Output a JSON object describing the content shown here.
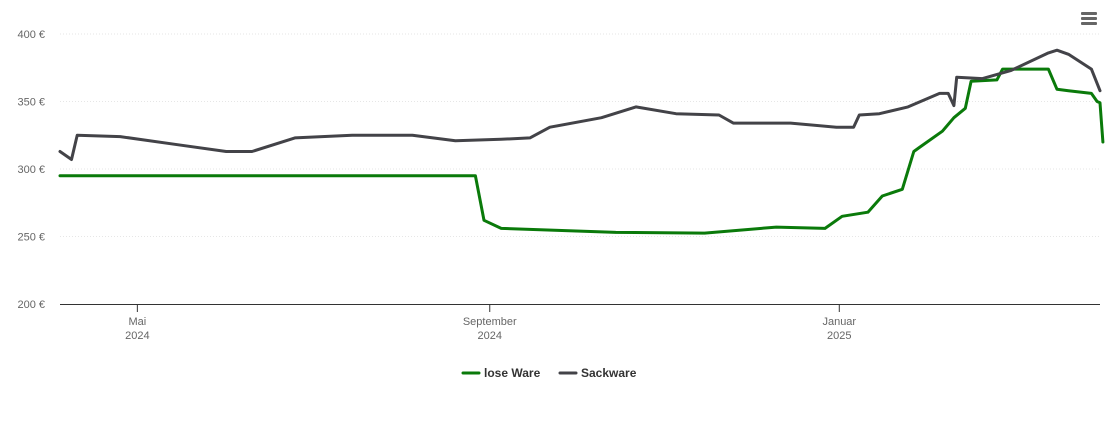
{
  "chart_data": {
    "type": "line",
    "ylim": [
      200,
      400
    ],
    "yticks": [
      200,
      250,
      300,
      350,
      400
    ],
    "ytick_labels": [
      "200 €",
      "250 €",
      "300 €",
      "350 €",
      "400 €"
    ],
    "xlim": [
      "2024-04-04",
      "2025-04-02"
    ],
    "xticks": [
      {
        "date": "2024-05-01",
        "label_line1": "Mai",
        "label_line2": "2024"
      },
      {
        "date": "2024-09-01",
        "label_line1": "September",
        "label_line2": "2024"
      },
      {
        "date": "2025-01-01",
        "label_line1": "Januar",
        "label_line2": "2025"
      }
    ],
    "legend_position": "bottom-center",
    "series": [
      {
        "name": "lose Ware",
        "color": "#0a7a0a",
        "points": [
          [
            "2024-04-04",
            295
          ],
          [
            "2024-08-27",
            295
          ],
          [
            "2024-08-30",
            262
          ],
          [
            "2024-09-05",
            256
          ],
          [
            "2024-10-15",
            253
          ],
          [
            "2024-11-15",
            252.5
          ],
          [
            "2024-12-10",
            257
          ],
          [
            "2024-12-27",
            256
          ],
          [
            "2025-01-02",
            265
          ],
          [
            "2025-01-11",
            268
          ],
          [
            "2025-01-16",
            280
          ],
          [
            "2025-01-23",
            285
          ],
          [
            "2025-01-27",
            313
          ],
          [
            "2025-01-29",
            316
          ],
          [
            "2025-02-06",
            328
          ],
          [
            "2025-02-10",
            338
          ],
          [
            "2025-02-14",
            345
          ],
          [
            "2025-02-16",
            365
          ],
          [
            "2025-02-25",
            366
          ],
          [
            "2025-02-27",
            374
          ],
          [
            "2025-03-15",
            374
          ],
          [
            "2025-03-18",
            359
          ],
          [
            "2025-03-22",
            358
          ],
          [
            "2025-03-30",
            356
          ],
          [
            "2025-04-01",
            350
          ],
          [
            "2025-04-02",
            349
          ],
          [
            "2025-04-03",
            320
          ]
        ]
      },
      {
        "name": "Sackware",
        "color": "#434348",
        "points": [
          [
            "2024-04-04",
            313
          ],
          [
            "2024-04-08",
            307
          ],
          [
            "2024-04-10",
            325
          ],
          [
            "2024-04-25",
            324
          ],
          [
            "2024-05-15",
            318
          ],
          [
            "2024-06-01",
            313
          ],
          [
            "2024-06-10",
            313
          ],
          [
            "2024-06-25",
            323
          ],
          [
            "2024-07-15",
            325
          ],
          [
            "2024-08-05",
            325
          ],
          [
            "2024-08-20",
            321
          ],
          [
            "2024-09-05",
            322
          ],
          [
            "2024-09-15",
            323
          ],
          [
            "2024-09-22",
            331
          ],
          [
            "2024-10-10",
            338
          ],
          [
            "2024-10-22",
            346
          ],
          [
            "2024-11-05",
            341
          ],
          [
            "2024-11-20",
            340
          ],
          [
            "2024-11-25",
            334
          ],
          [
            "2024-12-15",
            334
          ],
          [
            "2024-12-31",
            331
          ],
          [
            "2025-01-06",
            331
          ],
          [
            "2025-01-08",
            340
          ],
          [
            "2025-01-15",
            341
          ],
          [
            "2025-01-25",
            346
          ],
          [
            "2025-02-05",
            356
          ],
          [
            "2025-02-08",
            356
          ],
          [
            "2025-02-10",
            347
          ],
          [
            "2025-02-11",
            368
          ],
          [
            "2025-02-20",
            367
          ],
          [
            "2025-03-02",
            373
          ],
          [
            "2025-03-15",
            386
          ],
          [
            "2025-03-18",
            388
          ],
          [
            "2025-03-22",
            385
          ],
          [
            "2025-03-30",
            374
          ],
          [
            "2025-04-02",
            358
          ]
        ]
      }
    ]
  },
  "toolbar": {
    "menu_icon": "hamburger-menu-icon"
  }
}
